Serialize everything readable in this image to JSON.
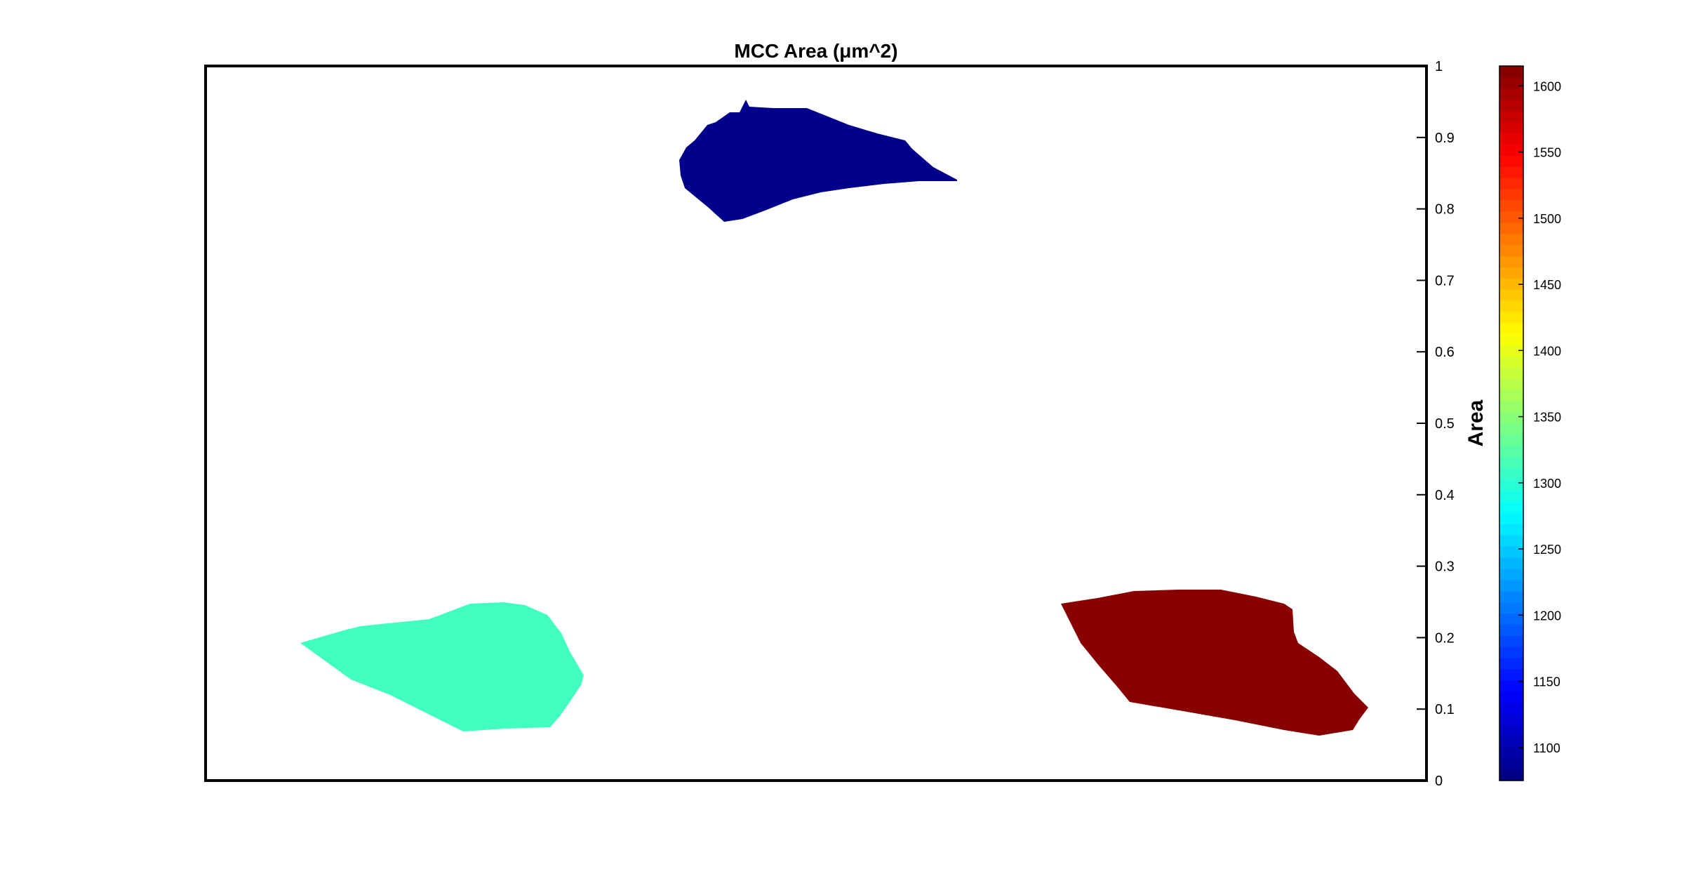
{
  "chart_data": {
    "type": "heatmap",
    "title": "MCC Area (μm^2)",
    "xlabel": "",
    "ylabel": "",
    "y_axis": {
      "location": "right",
      "ylim": [
        0,
        1
      ],
      "ticks": [
        0,
        0.1,
        0.2,
        0.3,
        0.4,
        0.5,
        0.6,
        0.7,
        0.8,
        0.9,
        1
      ],
      "tick_labels": [
        "0",
        "0.1",
        "0.2",
        "0.3",
        "0.4",
        "0.5",
        "0.6",
        "0.7",
        "0.8",
        "0.9",
        "1"
      ]
    },
    "x_axis": {
      "ticks_shown": false
    },
    "grid": false,
    "colormap": "jet",
    "colorbar": {
      "label": "Area",
      "range": [
        1075,
        1615
      ],
      "ticks": [
        1100,
        1150,
        1200,
        1250,
        1300,
        1350,
        1400,
        1450,
        1500,
        1550,
        1600
      ],
      "tick_labels": [
        "1100",
        "1150",
        "1200",
        "1250",
        "1300",
        "1350",
        "1400",
        "1450",
        "1500",
        "1550",
        "1600"
      ]
    },
    "regions": [
      {
        "name": "",
        "value": 1080,
        "color": "#00008b"
      },
      {
        "name": "",
        "value": 1310,
        "color": "#40ffc0"
      },
      {
        "name": "",
        "value": 1610,
        "color": "#880000"
      }
    ]
  }
}
